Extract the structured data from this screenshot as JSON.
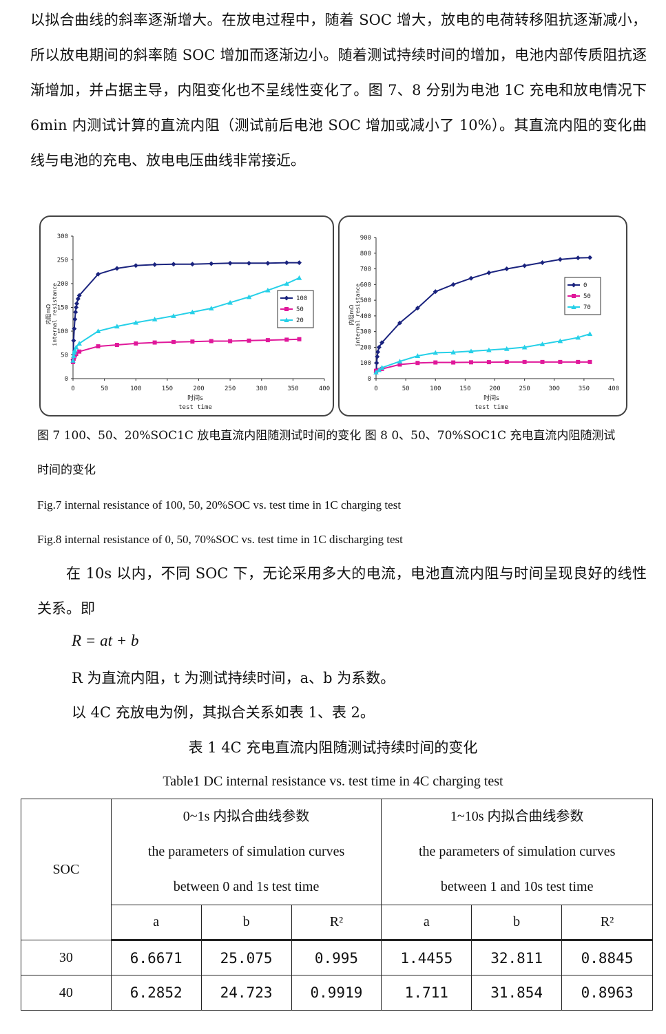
{
  "intro_paragraph": "以拟合曲线的斜率逐渐增大。在放电过程中，随着 SOC 增大，放电的电荷转移阻抗逐渐减小，所以放电期间的斜率随 SOC 增加而逐渐边小。随着测试持续时间的增加，电池内部传质阻抗逐渐增加，并占据主导，内阻变化也不呈线性变化了。图 7、8 分别为电池 1C 充电和放电情况下 6min 内测试计算的直流内阻（测试前后电池 SOC 增加或减小了 10%）。其直流内阻的变化曲线与电池的充电、放电电压曲线非常接近。",
  "figures": {
    "caption_cn_line1": "图 7 100、50、20%SOC1C 放电直流内阻随测试时间的变化  图 8 0、50、70%SOC1C 充电直流内阻随测试",
    "caption_cn_line2": "时间的变化",
    "caption_en_fig7": "Fig.7 internal resistance of 100, 50, 20%SOC vs. test time in 1C charging test",
    "caption_en_fig8": "Fig.8 internal resistance of 0, 50, 70%SOC vs. test time in 1C discharging test"
  },
  "chart_data": [
    {
      "type": "line",
      "title": "",
      "xlabel_cn": "时间s",
      "xlabel_en": "test time",
      "ylabel_cn": "内阻mΩ",
      "ylabel_en": "internal resistance",
      "xlim": [
        0,
        400
      ],
      "ylim": [
        0,
        300
      ],
      "xticks": [
        0,
        50,
        100,
        150,
        200,
        250,
        300,
        350,
        400
      ],
      "yticks": [
        0,
        50,
        100,
        150,
        200,
        250,
        300
      ],
      "legend_position": "right",
      "series": [
        {
          "name": "100",
          "color": "#1a237e",
          "marker": "diamond",
          "x": [
            0,
            1,
            2,
            3,
            4,
            5,
            6,
            8,
            10,
            40,
            70,
            100,
            130,
            160,
            190,
            220,
            250,
            280,
            310,
            340,
            360
          ],
          "y": [
            40,
            80,
            105,
            125,
            140,
            150,
            158,
            168,
            175,
            220,
            232,
            238,
            240,
            241,
            241,
            242,
            243,
            243,
            243,
            244,
            244
          ]
        },
        {
          "name": "50",
          "color": "#e0189a",
          "marker": "square",
          "x": [
            0,
            1,
            2,
            3,
            5,
            10,
            40,
            70,
            100,
            130,
            160,
            190,
            220,
            250,
            280,
            310,
            340,
            360
          ],
          "y": [
            35,
            42,
            46,
            49,
            52,
            57,
            68,
            71,
            74,
            76,
            77,
            78,
            79,
            79,
            80,
            81,
            82,
            83
          ]
        },
        {
          "name": "20",
          "color": "#26d0e8",
          "marker": "triangle",
          "x": [
            0,
            1,
            2,
            3,
            5,
            10,
            40,
            70,
            100,
            130,
            160,
            190,
            220,
            250,
            280,
            310,
            340,
            360
          ],
          "y": [
            38,
            48,
            55,
            60,
            66,
            74,
            100,
            110,
            118,
            125,
            132,
            140,
            148,
            160,
            172,
            186,
            200,
            212
          ]
        }
      ]
    },
    {
      "type": "line",
      "title": "",
      "xlabel_cn": "时间s",
      "xlabel_en": "test time",
      "ylabel_cn": "内阻mΩ",
      "ylabel_en": "internal resistance",
      "xlim": [
        0,
        400
      ],
      "ylim": [
        0,
        900
      ],
      "xticks": [
        0,
        50,
        100,
        150,
        200,
        250,
        300,
        350,
        400
      ],
      "yticks": [
        0,
        100,
        200,
        300,
        400,
        500,
        600,
        700,
        800,
        900
      ],
      "legend_position": "right",
      "series": [
        {
          "name": "0",
          "color": "#1a237e",
          "marker": "diamond",
          "x": [
            0,
            1,
            2,
            3,
            5,
            10,
            40,
            70,
            100,
            130,
            160,
            190,
            220,
            250,
            280,
            310,
            340,
            360
          ],
          "y": [
            40,
            100,
            140,
            170,
            200,
            230,
            355,
            450,
            555,
            600,
            640,
            675,
            700,
            720,
            740,
            760,
            770,
            772
          ]
        },
        {
          "name": "50",
          "color": "#e0189a",
          "marker": "square",
          "x": [
            0,
            5,
            10,
            40,
            70,
            100,
            130,
            160,
            190,
            220,
            250,
            280,
            310,
            340,
            360
          ],
          "y": [
            50,
            55,
            62,
            90,
            100,
            103,
            103,
            104,
            105,
            106,
            106,
            106,
            106,
            106,
            106
          ]
        },
        {
          "name": "70",
          "color": "#26d0e8",
          "marker": "triangle",
          "x": [
            0,
            5,
            10,
            40,
            70,
            100,
            130,
            160,
            190,
            220,
            250,
            280,
            310,
            340,
            360
          ],
          "y": [
            40,
            55,
            70,
            110,
            145,
            165,
            168,
            175,
            182,
            190,
            200,
            220,
            240,
            262,
            285
          ]
        }
      ]
    }
  ],
  "body": {
    "para2": "在 10s 以内，不同 SOC 下，无论采用多大的电流，电池直流内阻与时间呈现良好的线性关系。即",
    "formula": "R = at + b",
    "line_r": "R 为直流内阻，t 为测试持续时间，a、b 为系数。",
    "line_example": "以 4C 充放电为例，其拟合关系如表 1、表 2。"
  },
  "table": {
    "caption_cn": "表 1    4C 充电直流内阻随测试持续时间的变化",
    "caption_en": "Table1 DC internal resistance vs. test time in 4C charging test",
    "soc_header": "SOC",
    "group1_cn": "0~1s 内拟合曲线参数",
    "group1_en1": "the parameters of simulation curves",
    "group1_en2": "between 0 and 1s test time",
    "group2_cn": "1~10s 内拟合曲线参数",
    "group2_en1": "the parameters of simulation curves",
    "group2_en2": "between 1 and 10s test time",
    "sub_a": "a",
    "sub_b": "b",
    "sub_r2": "R²",
    "rows": [
      {
        "soc": "30",
        "a1": "6.6671",
        "b1": "25.075",
        "r1": "0.995",
        "a2": "1.4455",
        "b2": "32.811",
        "r2": "0.8845"
      },
      {
        "soc": "40",
        "a1": "6.2852",
        "b1": "24.723",
        "r1": "0.9919",
        "a2": "1.711",
        "b2": "31.854",
        "r2": "0.8963"
      }
    ]
  }
}
